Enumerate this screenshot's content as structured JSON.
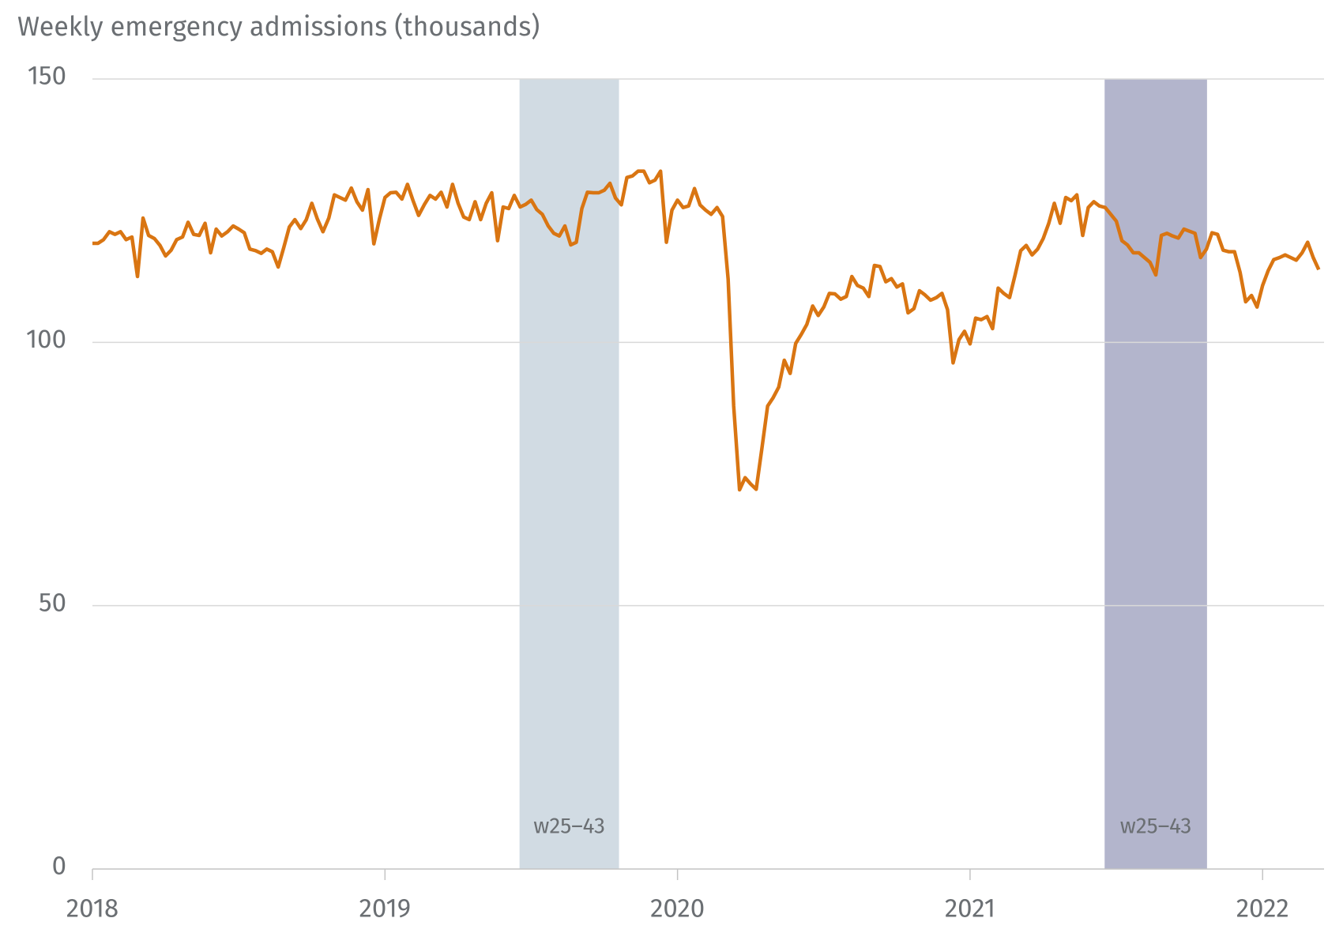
{
  "chart_data": {
    "type": "line",
    "title": "Weekly emergency admissions (thousands)",
    "xlim": [
      2018,
      2022.21
    ],
    "xticks": [
      2018,
      2019,
      2020,
      2021,
      2022
    ],
    "ylim": [
      0,
      150
    ],
    "yticks": [
      0,
      50,
      100,
      150
    ],
    "grid": true,
    "shaded_regions": [
      {
        "x0": 2019.46,
        "x1": 2019.8,
        "label": "w25–43",
        "color": "#d1dbe3"
      },
      {
        "x0": 2021.46,
        "x1": 2021.81,
        "label": "w25–43",
        "color": "#b3b5cc"
      }
    ],
    "series": [
      {
        "color": "#d97512",
        "x": [
          2018,
          2018.019,
          2018.038,
          2018.058,
          2018.077,
          2018.096,
          2018.115,
          2018.135,
          2018.154,
          2018.173,
          2018.192,
          2018.212,
          2018.231,
          2018.25,
          2018.269,
          2018.288,
          2018.308,
          2018.327,
          2018.346,
          2018.365,
          2018.385,
          2018.404,
          2018.423,
          2018.442,
          2018.462,
          2018.481,
          2018.5,
          2018.519,
          2018.538,
          2018.558,
          2018.577,
          2018.596,
          2018.615,
          2018.635,
          2018.654,
          2018.673,
          2018.692,
          2018.712,
          2018.731,
          2018.75,
          2018.769,
          2018.788,
          2018.808,
          2018.827,
          2018.846,
          2018.865,
          2018.885,
          2018.904,
          2018.923,
          2018.942,
          2018.962,
          2018.981,
          2019,
          2019.019,
          2019.038,
          2019.058,
          2019.077,
          2019.096,
          2019.115,
          2019.135,
          2019.154,
          2019.173,
          2019.192,
          2019.212,
          2019.231,
          2019.25,
          2019.269,
          2019.288,
          2019.308,
          2019.327,
          2019.346,
          2019.365,
          2019.385,
          2019.404,
          2019.423,
          2019.442,
          2019.462,
          2019.481,
          2019.5,
          2019.519,
          2019.538,
          2019.558,
          2019.577,
          2019.596,
          2019.615,
          2019.635,
          2019.654,
          2019.673,
          2019.692,
          2019.712,
          2019.731,
          2019.75,
          2019.769,
          2019.788,
          2019.808,
          2019.827,
          2019.846,
          2019.865,
          2019.885,
          2019.904,
          2019.923,
          2019.942,
          2019.962,
          2019.981,
          2020,
          2020.019,
          2020.038,
          2020.058,
          2020.077,
          2020.096,
          2020.115,
          2020.135,
          2020.154,
          2020.173,
          2020.192,
          2020.212,
          2020.231,
          2020.25,
          2020.269,
          2020.288,
          2020.308,
          2020.327,
          2020.346,
          2020.365,
          2020.385,
          2020.404,
          2020.423,
          2020.442,
          2020.462,
          2020.481,
          2020.5,
          2020.519,
          2020.538,
          2020.558,
          2020.577,
          2020.596,
          2020.615,
          2020.635,
          2020.654,
          2020.673,
          2020.692,
          2020.712,
          2020.731,
          2020.75,
          2020.769,
          2020.788,
          2020.808,
          2020.827,
          2020.846,
          2020.865,
          2020.885,
          2020.904,
          2020.923,
          2020.942,
          2020.962,
          2020.981,
          2021,
          2021.019,
          2021.038,
          2021.058,
          2021.077,
          2021.096,
          2021.115,
          2021.135,
          2021.154,
          2021.173,
          2021.192,
          2021.212,
          2021.231,
          2021.25,
          2021.269,
          2021.288,
          2021.308,
          2021.327,
          2021.346,
          2021.365,
          2021.385,
          2021.404,
          2021.423,
          2021.442,
          2021.462,
          2021.481,
          2021.5,
          2021.519,
          2021.538,
          2021.558,
          2021.577,
          2021.596,
          2021.615,
          2021.635,
          2021.654,
          2021.673,
          2021.692,
          2021.712,
          2021.731,
          2021.75,
          2021.769,
          2021.788,
          2021.808,
          2021.827,
          2021.846,
          2021.865,
          2021.885,
          2021.904,
          2021.923,
          2021.942,
          2021.962,
          2021.981,
          2022,
          2022.019,
          2022.038,
          2022.058,
          2022.077,
          2022.096,
          2022.115,
          2022.135,
          2022.154,
          2022.173,
          2022.192
        ],
        "values": [
          118.8,
          118.8,
          119.5,
          121,
          120.5,
          121,
          119.5,
          120,
          112.5,
          123.6,
          120.3,
          119.7,
          118.4,
          116.4,
          117.5,
          119.5,
          120,
          122.8,
          120.5,
          120.3,
          122.6,
          117,
          121.5,
          120.2,
          121,
          122.1,
          121.5,
          120.8,
          117.7,
          117.4,
          116.9,
          117.7,
          117.2,
          114.3,
          118,
          121.9,
          123.3,
          121.6,
          123.3,
          126.4,
          123.4,
          121,
          123.6,
          128,
          127.5,
          127,
          129.3,
          126.7,
          125.1,
          129,
          118.7,
          123.4,
          127.5,
          128.4,
          128.5,
          127.2,
          130,
          126.9,
          124.1,
          126.2,
          127.9,
          127.2,
          128.5,
          125.7,
          130,
          126.4,
          123.8,
          123.3,
          126.7,
          123.3,
          126.4,
          128.4,
          119.3,
          125.7,
          125.4,
          127.9,
          125.7,
          126.2,
          127,
          125.2,
          124.3,
          122.1,
          120.7,
          120.2,
          122.1,
          118.5,
          119,
          125.4,
          128.5,
          128.4,
          128.4,
          128.9,
          130.2,
          127.4,
          126.1,
          131.3,
          131.6,
          132.5,
          132.5,
          130.3,
          130.8,
          132.5,
          119,
          125.1,
          127,
          125.6,
          125.9,
          129.2,
          126.1,
          125.1,
          124.3,
          125.6,
          123.9,
          112,
          87.9,
          72,
          74.3,
          73.1,
          72.1,
          79.7,
          87.9,
          89.5,
          91.5,
          96.6,
          94.1,
          99.8,
          101.5,
          103.4,
          106.9,
          105.1,
          106.7,
          109.3,
          109.2,
          108.2,
          108.7,
          112.5,
          110.8,
          110.3,
          108.7,
          114.6,
          114.4,
          111.5,
          112.1,
          110.5,
          111.1,
          105.6,
          106.4,
          109.8,
          109,
          108,
          108.5,
          109.3,
          106.2,
          96.1,
          100.5,
          102.1,
          99.7,
          104.6,
          104.3,
          104.9,
          102.6,
          110.3,
          109.3,
          108.5,
          112.8,
          117.4,
          118.4,
          116.6,
          117.7,
          119.7,
          122.6,
          126.4,
          122.6,
          127.5,
          126.9,
          128,
          120.3,
          125.6,
          126.7,
          125.9,
          125.6,
          124.3,
          123,
          119.3,
          118.5,
          117,
          117,
          116.1,
          115.2,
          112.8,
          120.3,
          120.7,
          120.2,
          119.8,
          121.5,
          121.1,
          120.7,
          116.1,
          117.7,
          120.8,
          120.5,
          117.5,
          117.2,
          117.2,
          113.3,
          107.7,
          108.9,
          106.7,
          110.8,
          113.6,
          115.7,
          116.1,
          116.6,
          116.1,
          115.6,
          117,
          119,
          116.1,
          113.8
        ]
      }
    ]
  }
}
